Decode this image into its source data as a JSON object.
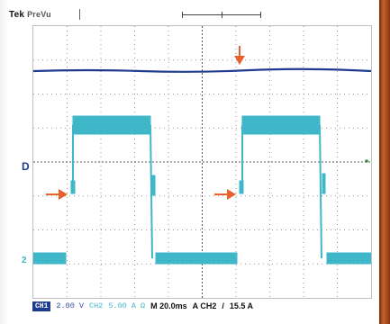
{
  "status_top": {
    "brand": "Tek",
    "mode": "PreVu"
  },
  "status_bottom": {
    "ch1_label": "CH1",
    "ch1_scale": "2.00 V",
    "ch2_label": "CH2",
    "ch2_scale": "5.00 A Ω",
    "timebase": "M 20.0ms",
    "trigger_channel": "A  CH2",
    "trigger_slope": "/",
    "trigger_level": "15.5 A"
  },
  "markers": {
    "ch1_marker": "D",
    "ch2_marker": "2"
  },
  "colors": {
    "ch1": "#1f3b8f",
    "ch2": "#3fb7c8",
    "arrow": "#e8602c",
    "grid": "#9a9a9a"
  },
  "icons": [
    "orange-arrow-down-icon",
    "orange-arrow-right-icon",
    "orange-arrow-right-icon"
  ]
}
